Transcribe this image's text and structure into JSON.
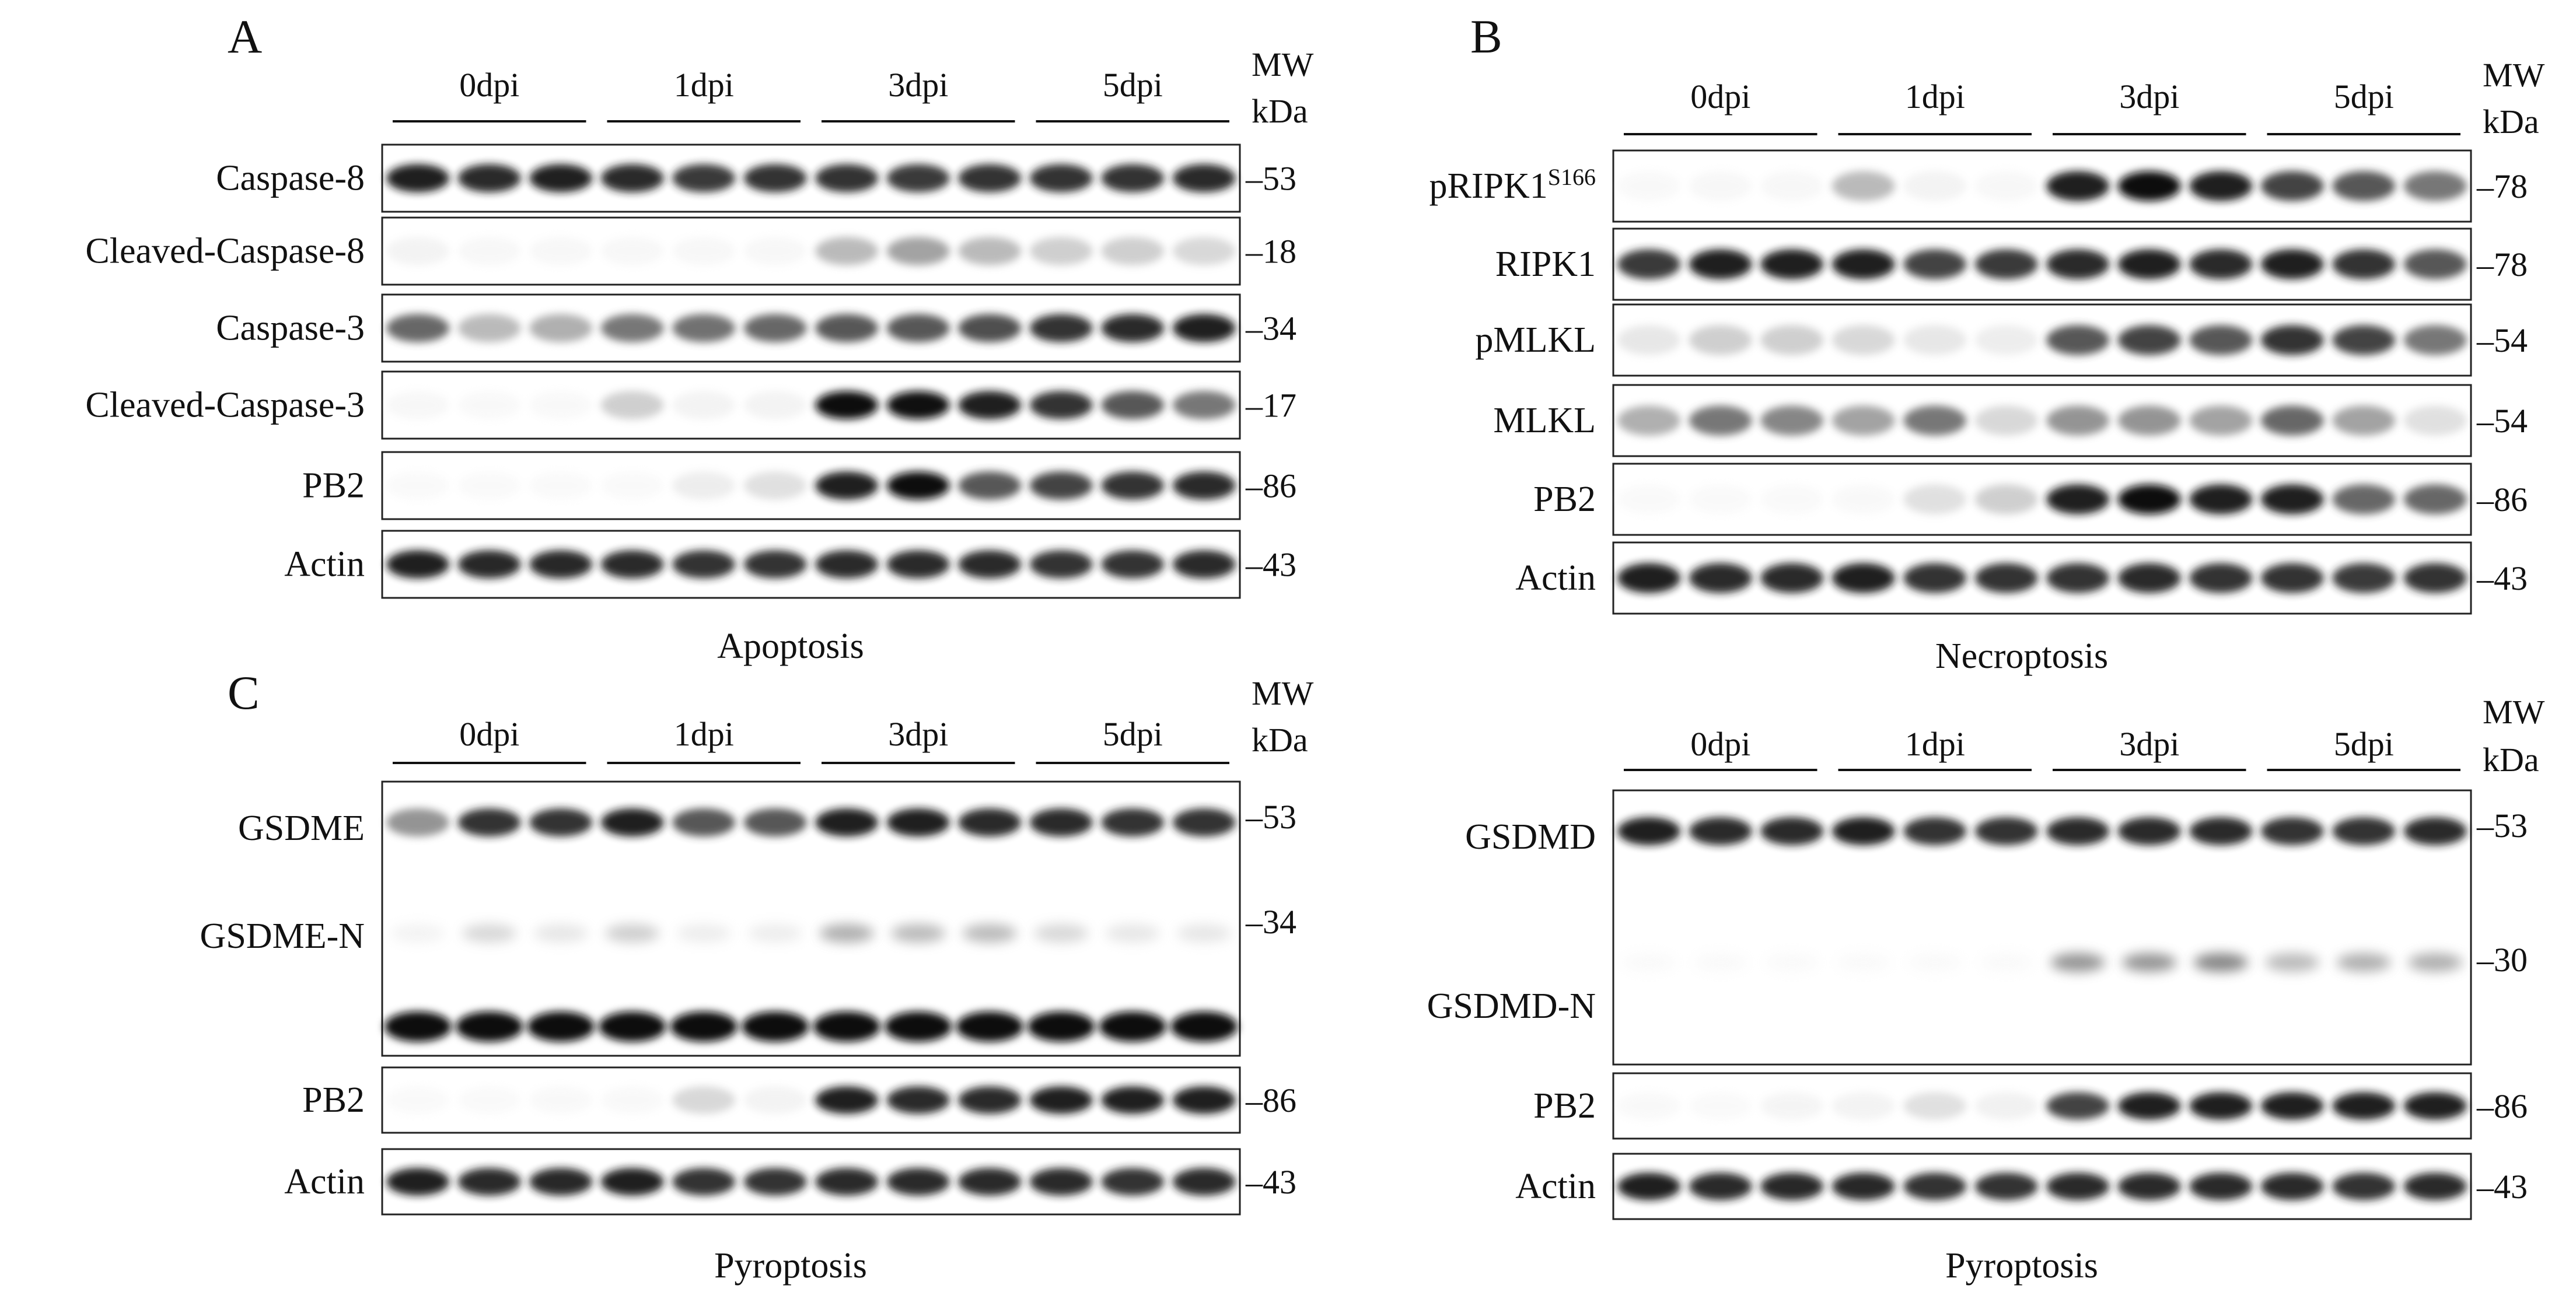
{
  "figure": {
    "group_labels": [
      "0dpi",
      "1dpi",
      "3dpi",
      "5dpi"
    ],
    "mw_header": [
      "MW",
      "kDa"
    ],
    "panels": [
      {
        "letter": "A",
        "caption": "Apoptosis",
        "blots": [
          {
            "name": "Caspase-8",
            "mw": "53",
            "intensity": [
              0.95,
              0.92,
              0.94,
              0.92,
              0.88,
              0.9,
              0.9,
              0.88,
              0.9,
              0.9,
              0.9,
              0.92
            ]
          },
          {
            "name": "Cleaved-Caspase-8",
            "mw": "18",
            "intensity": [
              0.1,
              0.05,
              0.05,
              0.05,
              0.05,
              0.05,
              0.45,
              0.55,
              0.45,
              0.35,
              0.35,
              0.3
            ]
          },
          {
            "name": "Caspase-3",
            "mw": "34",
            "intensity": [
              0.75,
              0.45,
              0.5,
              0.7,
              0.72,
              0.75,
              0.8,
              0.8,
              0.82,
              0.9,
              0.92,
              0.95
            ]
          },
          {
            "name": "Cleaved-Caspase-3",
            "mw": "17",
            "intensity": [
              0.05,
              0.03,
              0.03,
              0.35,
              0.1,
              0.1,
              1.0,
              0.98,
              0.95,
              0.9,
              0.8,
              0.7
            ]
          },
          {
            "name": "PB2",
            "mw": "86",
            "intensity": [
              0.02,
              0.02,
              0.02,
              0.02,
              0.15,
              0.25,
              0.95,
              1.0,
              0.8,
              0.85,
              0.9,
              0.92
            ]
          },
          {
            "name": "Actin",
            "mw": "43",
            "intensity": [
              0.95,
              0.93,
              0.93,
              0.92,
              0.9,
              0.9,
              0.92,
              0.92,
              0.92,
              0.9,
              0.9,
              0.92
            ]
          }
        ]
      },
      {
        "letter": "B",
        "caption": "Necroptosis",
        "blots": [
          {
            "name": "pRIPK1",
            "superscript": "S166",
            "mw": "78",
            "intensity": [
              0.03,
              0.05,
              0.05,
              0.45,
              0.1,
              0.05,
              0.95,
              1.0,
              0.95,
              0.85,
              0.8,
              0.7
            ]
          },
          {
            "name": "RIPK1",
            "mw": "78",
            "intensity": [
              0.88,
              0.95,
              0.95,
              0.95,
              0.85,
              0.88,
              0.92,
              0.95,
              0.92,
              0.95,
              0.9,
              0.8
            ]
          },
          {
            "name": "pMLKL",
            "mw": "54",
            "intensity": [
              0.2,
              0.35,
              0.35,
              0.3,
              0.2,
              0.15,
              0.8,
              0.85,
              0.8,
              0.9,
              0.85,
              0.7
            ]
          },
          {
            "name": "MLKL",
            "mw": "54",
            "intensity": [
              0.5,
              0.7,
              0.65,
              0.55,
              0.7,
              0.3,
              0.6,
              0.6,
              0.55,
              0.75,
              0.55,
              0.25
            ]
          },
          {
            "name": "PB2",
            "mw": "86",
            "intensity": [
              0.02,
              0.02,
              0.02,
              0.03,
              0.25,
              0.35,
              0.95,
              1.0,
              0.95,
              0.95,
              0.75,
              0.75
            ]
          },
          {
            "name": "Actin",
            "mw": "43",
            "intensity": [
              0.95,
              0.92,
              0.92,
              0.95,
              0.9,
              0.9,
              0.9,
              0.92,
              0.9,
              0.9,
              0.88,
              0.9
            ]
          }
        ]
      },
      {
        "letter": "C",
        "caption": "Pyroptosis",
        "blots": [
          {
            "name": "GSDME",
            "labels": [
              "GSDME",
              "GSDME-N"
            ],
            "mw_ticks": [
              "53",
              "34"
            ],
            "intensity": [
              0.6,
              0.9,
              0.9,
              0.95,
              0.8,
              0.8,
              0.95,
              0.95,
              0.92,
              0.92,
              0.9,
              0.9
            ],
            "cleaved": [
              0.1,
              0.3,
              0.2,
              0.35,
              0.15,
              0.15,
              0.5,
              0.45,
              0.45,
              0.3,
              0.2,
              0.2
            ]
          },
          {
            "name": "PB2",
            "mw": "86",
            "intensity": [
              0.02,
              0.02,
              0.03,
              0.03,
              0.3,
              0.1,
              0.95,
              0.92,
              0.92,
              0.95,
              0.95,
              0.95
            ]
          },
          {
            "name": "Actin",
            "mw": "43",
            "intensity": [
              0.95,
              0.92,
              0.93,
              0.95,
              0.9,
              0.9,
              0.92,
              0.92,
              0.92,
              0.92,
              0.9,
              0.92
            ]
          }
        ]
      },
      {
        "letter": "",
        "caption": "Pyroptosis",
        "blots": [
          {
            "name": "GSDMD",
            "labels": [
              "GSDMD",
              "GSDMD-N"
            ],
            "mw_ticks": [
              "53",
              "30"
            ],
            "intensity": [
              0.95,
              0.92,
              0.92,
              0.95,
              0.9,
              0.9,
              0.92,
              0.92,
              0.92,
              0.9,
              0.9,
              0.92
            ],
            "cleaved": [
              0.02,
              0.02,
              0.02,
              0.02,
              0.02,
              0.02,
              0.6,
              0.6,
              0.65,
              0.45,
              0.5,
              0.5
            ]
          },
          {
            "name": "PB2",
            "mw": "86",
            "intensity": [
              0.03,
              0.02,
              0.08,
              0.1,
              0.25,
              0.12,
              0.85,
              0.95,
              0.95,
              0.95,
              0.95,
              0.95
            ]
          },
          {
            "name": "Actin",
            "mw": "43",
            "intensity": [
              0.95,
              0.92,
              0.93,
              0.93,
              0.9,
              0.9,
              0.92,
              0.92,
              0.92,
              0.92,
              0.9,
              0.92
            ]
          }
        ]
      }
    ]
  }
}
